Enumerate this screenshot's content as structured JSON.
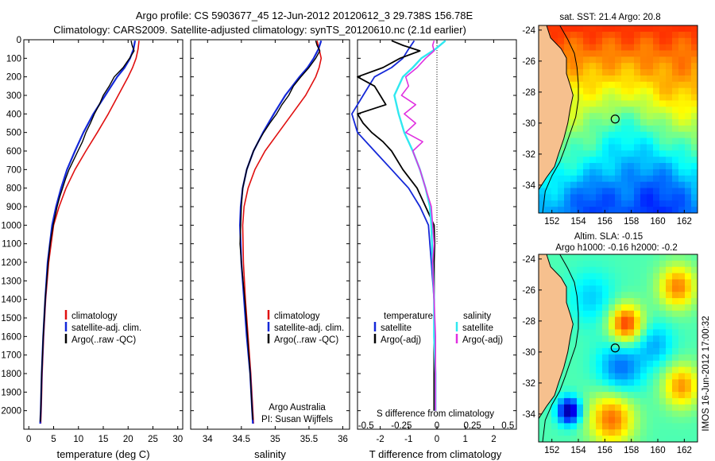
{
  "figure": {
    "title_line1": "Argo profile: CS 5903677_45 12-Jun-2012 20120612_3 29.738S 156.78E",
    "title_line2": "Climatology: CARS2009. Satellite-adjusted climatology: synTS_20120610.nc (2.1d earlier)",
    "footer_org": "Argo Australia",
    "footer_pi": "PI: Susan Wijffels",
    "stamp": "IMOS 16-Jun-2012 17:00:32"
  },
  "colors": {
    "climatology": "#e01010",
    "satellite": "#1428d8",
    "argo": "#000000",
    "sal_satellite": "#30e8f0",
    "sal_argo": "#e030e0",
    "land": "#f6c08e",
    "coast": "#000000"
  },
  "chart_data": [
    {
      "id": "temperature",
      "type": "line",
      "xlabel": "temperature (deg C)",
      "ylabel": "depth",
      "xlim": [
        -1,
        31
      ],
      "ylim": [
        2100,
        0
      ],
      "xticks": [
        "0",
        "5",
        "10",
        "15",
        "20",
        "25",
        "30"
      ],
      "xtick_values": [
        0,
        5,
        10,
        15,
        20,
        25,
        30
      ],
      "yticks": [
        "0",
        "100",
        "200",
        "300",
        "400",
        "500",
        "600",
        "700",
        "800",
        "900",
        "1000",
        "1100",
        "1200",
        "1300",
        "1400",
        "1500",
        "1600",
        "1700",
        "1800",
        "1900",
        "2000"
      ],
      "ytick_values": [
        0,
        100,
        200,
        300,
        400,
        500,
        600,
        700,
        800,
        900,
        1000,
        1100,
        1200,
        1300,
        1400,
        1500,
        1600,
        1700,
        1800,
        1900,
        2000
      ],
      "legend": [
        "climatology",
        "satellite-adj. clim.",
        "Argo(..raw -QC)"
      ],
      "series": [
        {
          "name": "climatology",
          "depth": [
            5,
            50,
            100,
            150,
            200,
            300,
            400,
            500,
            600,
            700,
            800,
            900,
            1000,
            1200,
            1400,
            1600,
            1800,
            2000,
            2070
          ],
          "values": [
            22.2,
            22.0,
            21.6,
            20.9,
            20.0,
            18.0,
            16.0,
            13.8,
            11.5,
            9.3,
            7.5,
            6.1,
            5.0,
            4.0,
            3.4,
            3.0,
            2.7,
            2.5,
            2.4
          ]
        },
        {
          "name": "satellite-adj. clim.",
          "depth": [
            5,
            50,
            100,
            150,
            200,
            300,
            400,
            500,
            600,
            700,
            800,
            900,
            1000,
            1200,
            1400,
            1600,
            1800,
            2000,
            2070
          ],
          "values": [
            21.4,
            21.1,
            20.4,
            19.3,
            17.8,
            15.4,
            13.0,
            11.0,
            9.3,
            7.7,
            6.5,
            5.5,
            4.7,
            3.8,
            3.3,
            2.9,
            2.6,
            2.4,
            2.3
          ]
        },
        {
          "name": "Argo(..raw -QC)",
          "depth": [
            5,
            30,
            60,
            100,
            150,
            200,
            250,
            300,
            350,
            400,
            450,
            500,
            550,
            600,
            650,
            700,
            750,
            800,
            850,
            900,
            1000,
            1100,
            1200,
            1400,
            1600,
            1800,
            2000,
            2060
          ],
          "values": [
            20.6,
            20.8,
            21.2,
            20.3,
            19.0,
            17.2,
            16.2,
            15.0,
            14.2,
            13.2,
            12.4,
            11.5,
            10.8,
            9.9,
            9.0,
            8.1,
            7.4,
            6.8,
            6.2,
            5.7,
            4.9,
            4.3,
            3.9,
            3.3,
            2.9,
            2.6,
            2.4,
            2.3
          ]
        }
      ]
    },
    {
      "id": "salinity",
      "type": "line",
      "xlabel": "salinity",
      "xlim": [
        33.75,
        36.1
      ],
      "ylim": [
        2100,
        0
      ],
      "xticks": [
        "34",
        "34.5",
        "35",
        "35.5",
        "36"
      ],
      "xtick_values": [
        34,
        34.5,
        35,
        35.5,
        36
      ],
      "legend": [
        "climatology",
        "satellite-adj. clim.",
        "Argo(..raw -QC)"
      ],
      "series": [
        {
          "name": "climatology",
          "depth": [
            5,
            50,
            100,
            150,
            200,
            300,
            400,
            500,
            600,
            700,
            800,
            900,
            1000,
            1200,
            1400,
            1600,
            1800,
            2000,
            2070
          ],
          "values": [
            35.62,
            35.65,
            35.68,
            35.65,
            35.6,
            35.45,
            35.25,
            35.05,
            34.85,
            34.7,
            34.6,
            34.54,
            34.52,
            34.53,
            34.56,
            34.6,
            34.64,
            34.67,
            34.68
          ]
        },
        {
          "name": "satellite-adj. clim.",
          "depth": [
            5,
            50,
            100,
            150,
            200,
            300,
            400,
            500,
            600,
            700,
            800,
            900,
            1000,
            1200,
            1400,
            1600,
            1800,
            2000,
            2070
          ],
          "values": [
            35.68,
            35.64,
            35.57,
            35.48,
            35.36,
            35.15,
            34.98,
            34.82,
            34.68,
            34.58,
            34.52,
            34.49,
            34.48,
            34.5,
            34.54,
            34.58,
            34.63,
            34.66,
            34.67
          ]
        },
        {
          "name": "Argo(..raw -QC)",
          "depth": [
            5,
            30,
            60,
            100,
            150,
            200,
            250,
            300,
            350,
            400,
            450,
            500,
            550,
            600,
            700,
            800,
            900,
            1000,
            1100,
            1200,
            1400,
            1600,
            1800,
            2000,
            2050
          ],
          "values": [
            35.6,
            35.62,
            35.66,
            35.6,
            35.5,
            35.38,
            35.27,
            35.2,
            35.1,
            35.02,
            34.92,
            34.83,
            34.75,
            34.68,
            34.58,
            34.52,
            34.5,
            34.49,
            34.48,
            34.5,
            34.55,
            34.59,
            34.63,
            34.66,
            34.67
          ]
        }
      ]
    },
    {
      "id": "difference",
      "type": "line",
      "xlabel": "T difference from climatology",
      "xlabel_top": "S difference from climatology",
      "xlim": [
        -2.8,
        2.8
      ],
      "ylim": [
        2100,
        0
      ],
      "xticks": [
        "-2",
        "-1",
        "0",
        "1",
        "2"
      ],
      "xtick_values": [
        -2,
        -1,
        0,
        1,
        2
      ],
      "s_xticks": [
        "-0.5",
        "-0.25",
        "0",
        "0.25",
        "0.5"
      ],
      "s_xtick_values": [
        -0.5,
        -0.25,
        0,
        0.25,
        0.5
      ],
      "legend_temperature_title": "temperature",
      "legend_salinity_title": "salinity",
      "legend": [
        "satellite",
        "Argo(-adj)",
        "satellite",
        "Argo(-adj)"
      ],
      "series": [
        {
          "name": "temperature satellite",
          "depth": [
            5,
            50,
            100,
            150,
            200,
            300,
            400,
            500,
            600,
            700,
            800,
            900,
            1000,
            1200,
            1400,
            1600,
            1800,
            2000
          ],
          "values": [
            -0.8,
            -1.0,
            -1.2,
            -1.6,
            -2.2,
            -2.6,
            -3.0,
            -2.8,
            -2.2,
            -1.6,
            -1.0,
            -0.6,
            -0.3,
            -0.2,
            -0.1,
            -0.1,
            -0.1,
            -0.1
          ]
        },
        {
          "name": "temperature Argo(-adj)",
          "depth": [
            5,
            30,
            60,
            100,
            150,
            200,
            250,
            300,
            350,
            400,
            450,
            500,
            550,
            600,
            700,
            800,
            900,
            1000,
            1100,
            1200,
            1400,
            1600,
            1800,
            2000
          ],
          "values": [
            -1.6,
            -1.2,
            -0.6,
            -1.3,
            -1.9,
            -2.8,
            -2.2,
            -2.0,
            -1.8,
            -2.8,
            -2.6,
            -2.3,
            -1.9,
            -1.6,
            -1.2,
            -0.7,
            -0.4,
            -0.1,
            -0.08,
            -0.1,
            -0.1,
            -0.1,
            -0.1,
            -0.1
          ]
        },
        {
          "name": "salinity satellite",
          "depth": [
            5,
            50,
            100,
            150,
            200,
            300,
            400,
            500,
            600,
            700,
            800,
            900,
            1000,
            1200,
            1400,
            1600,
            1800,
            2000
          ],
          "values": [
            0.06,
            -0.01,
            -0.11,
            -0.17,
            -0.24,
            -0.3,
            -0.27,
            -0.23,
            -0.17,
            -0.12,
            -0.08,
            -0.05,
            -0.04,
            -0.03,
            -0.02,
            -0.02,
            -0.01,
            -0.01
          ]
        },
        {
          "name": "salinity Argo(-adj)",
          "depth": [
            5,
            30,
            60,
            100,
            150,
            200,
            250,
            300,
            350,
            400,
            450,
            500,
            550,
            600,
            700,
            800,
            900,
            1000,
            1100,
            1200,
            1400,
            1600,
            1800,
            2000
          ],
          "values": [
            -0.02,
            -0.03,
            -0.02,
            -0.08,
            -0.14,
            -0.22,
            -0.2,
            -0.25,
            -0.15,
            -0.23,
            -0.15,
            -0.22,
            -0.1,
            -0.17,
            -0.12,
            -0.08,
            -0.04,
            -0.03,
            -0.02,
            -0.03,
            -0.02,
            -0.01,
            -0.01,
            -0.01
          ]
        }
      ]
    },
    {
      "id": "sst_map",
      "type": "heatmap",
      "title": "sat. SST: 21.4  Argo: 20.8",
      "xlim": [
        151,
        163
      ],
      "ylim": [
        -35.8,
        -23.7
      ],
      "xticks": [
        "152",
        "154",
        "156",
        "158",
        "160",
        "162"
      ],
      "xtick_values": [
        152,
        154,
        156,
        158,
        160,
        162
      ],
      "yticks": [
        "-24",
        "-26",
        "-28",
        "-30",
        "-32",
        "-34"
      ],
      "ytick_values": [
        -24,
        -26,
        -28,
        -30,
        -32,
        -34
      ],
      "marker": {
        "lon": 156.78,
        "lat": -29.738
      }
    },
    {
      "id": "sla_map",
      "type": "heatmap",
      "title_line1": "Altim. SLA: -0.15",
      "title_line2": "Argo h1000: -0.16  h2000: -0.2",
      "xlim": [
        151,
        163
      ],
      "ylim": [
        -35.8,
        -23.7
      ],
      "xticks": [
        "152",
        "154",
        "156",
        "158",
        "160",
        "162"
      ],
      "xtick_values": [
        152,
        154,
        156,
        158,
        160,
        162
      ],
      "yticks": [
        "-24",
        "-26",
        "-28",
        "-30",
        "-32",
        "-34"
      ],
      "ytick_values": [
        -24,
        -26,
        -28,
        -30,
        -32,
        -34
      ],
      "marker": {
        "lon": 156.78,
        "lat": -29.738
      }
    }
  ]
}
